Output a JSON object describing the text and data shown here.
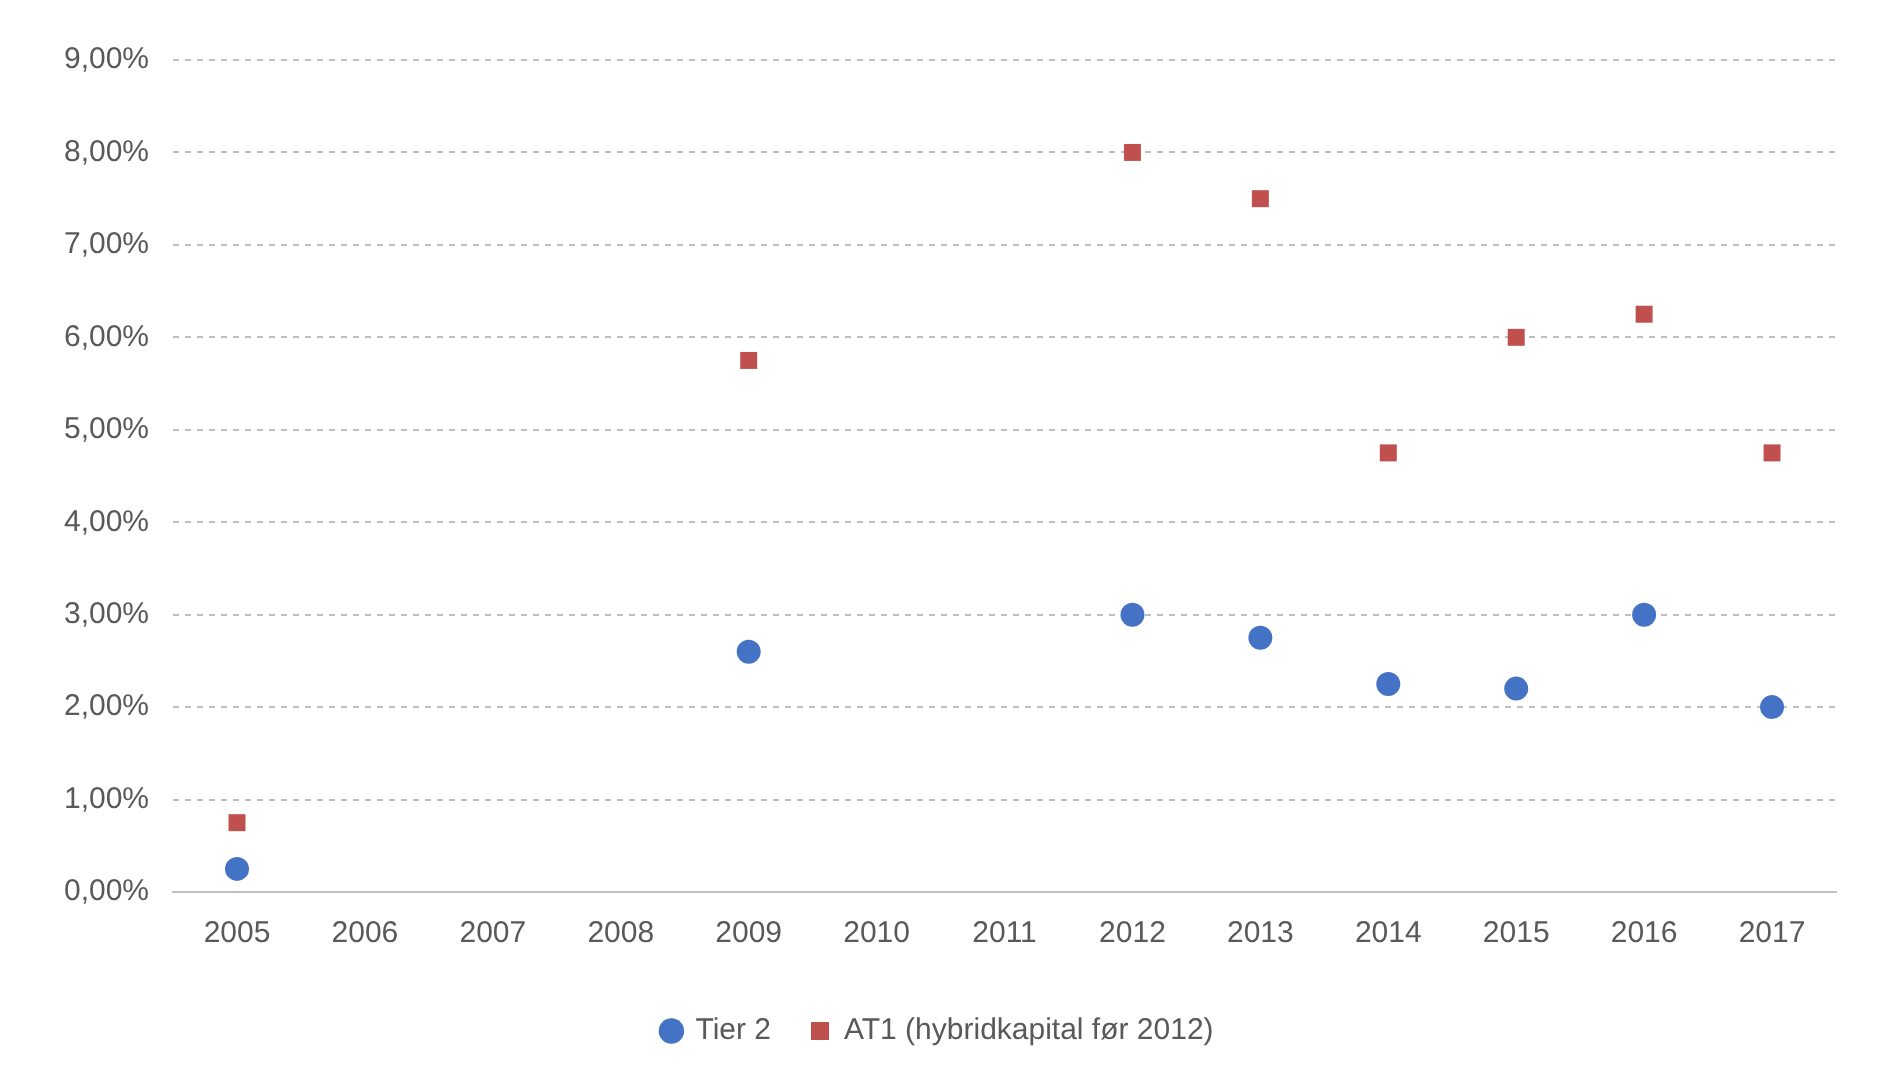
{
  "chart_data": {
    "type": "scatter",
    "categories": [
      "2005",
      "2006",
      "2007",
      "2008",
      "2009",
      "2010",
      "2011",
      "2012",
      "2013",
      "2014",
      "2015",
      "2016",
      "2017"
    ],
    "series": [
      {
        "name": "Tier 2",
        "color": "#4472c4",
        "marker": "circle",
        "values": [
          0.25,
          null,
          null,
          null,
          2.6,
          null,
          null,
          3.0,
          2.75,
          2.25,
          2.2,
          3.0,
          2.0
        ]
      },
      {
        "name": "AT1 (hybridkapital før 2012)",
        "color": "#c0504d",
        "marker": "square",
        "values": [
          0.75,
          null,
          null,
          null,
          5.75,
          null,
          null,
          8.0,
          7.5,
          4.75,
          6.0,
          6.25,
          4.75
        ]
      }
    ],
    "ylim": [
      0,
      9
    ],
    "yticks": [
      {
        "value": 0,
        "label": "0,00%"
      },
      {
        "value": 1,
        "label": "1,00%"
      },
      {
        "value": 2,
        "label": "2,00%"
      },
      {
        "value": 3,
        "label": "3,00%"
      },
      {
        "value": 4,
        "label": "4,00%"
      },
      {
        "value": 5,
        "label": "5,00%"
      },
      {
        "value": 6,
        "label": "6,00%"
      },
      {
        "value": 7,
        "label": "7,00%"
      },
      {
        "value": 8,
        "label": "8,00%"
      },
      {
        "value": 9,
        "label": "9,00%"
      }
    ],
    "grid": "y",
    "legend": "bottom"
  }
}
